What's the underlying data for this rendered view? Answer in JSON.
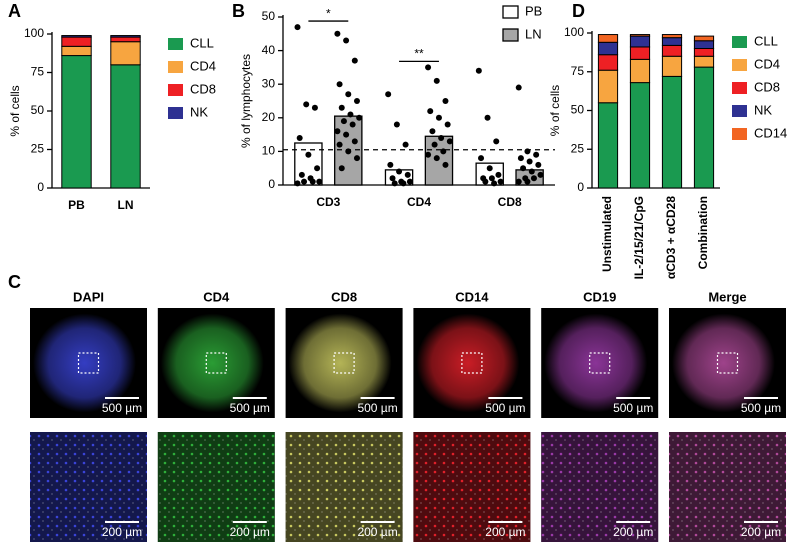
{
  "chart_data": [
    {
      "type": "stacked_bar",
      "panel": "A",
      "ylabel": "% of cells",
      "categories": [
        "PB",
        "LN"
      ],
      "series": [
        {
          "name": "CLL",
          "color": "#1a9a50",
          "values": [
            86,
            80
          ]
        },
        {
          "name": "CD4",
          "color": "#f7a540",
          "values": [
            6,
            15
          ]
        },
        {
          "name": "CD8",
          "color": "#ee2024",
          "values": [
            6,
            3
          ]
        },
        {
          "name": "NK",
          "color": "#2e3192",
          "values": [
            1,
            1
          ]
        }
      ],
      "ylim": [
        0,
        100
      ],
      "yticks": [
        0,
        25,
        50,
        75,
        100
      ],
      "legend": "right"
    },
    {
      "type": "bar",
      "panel": "B",
      "ylabel": "% of lymphocytes",
      "categories": [
        "CD3",
        "CD4",
        "CD8"
      ],
      "series": [
        {
          "name": "PB",
          "color": "#ffffff",
          "values": [
            12.5,
            4.5,
            6.5
          ],
          "points": [
            [
              47,
              24,
              23,
              14,
              9,
              5,
              3,
              2,
              1,
              1,
              1,
              0.5
            ],
            [
              27,
              18,
              12,
              6,
              4,
              3,
              2,
              1,
              1,
              0.5,
              0.5
            ],
            [
              34,
              20,
              13,
              8,
              5,
              3,
              2,
              2,
              1,
              1,
              0.5
            ]
          ]
        },
        {
          "name": "LN",
          "color": "#a6a6a6",
          "values": [
            20.5,
            14.5,
            4.5
          ],
          "points": [
            [
              45,
              43,
              37,
              30,
              27,
              25,
              23,
              21,
              20,
              19,
              18,
              16,
              15,
              13,
              12,
              10,
              8,
              5
            ],
            [
              35,
              31,
              25,
              22,
              20,
              18,
              16,
              14,
              13,
              12,
              10,
              9,
              8,
              6
            ],
            [
              29,
              10,
              9,
              8,
              7,
              6,
              5,
              4,
              3,
              2,
              2,
              1,
              1
            ]
          ]
        }
      ],
      "ylim": [
        0,
        50
      ],
      "yticks": [
        0,
        10,
        20,
        30,
        40,
        50
      ],
      "reference_line": 10.5,
      "annotations": [
        {
          "text": "*",
          "category": "CD3"
        },
        {
          "text": "**",
          "category": "CD4"
        }
      ],
      "legend": "top-right"
    },
    {
      "type": "stacked_bar",
      "panel": "D",
      "ylabel": "% of cells",
      "categories": [
        "Unstimulated",
        "IL-2/15/21/CpG",
        "αCD3 + αCD28",
        "Combination"
      ],
      "series": [
        {
          "name": "CLL",
          "color": "#1a9a50",
          "values": [
            55,
            68,
            72,
            78
          ]
        },
        {
          "name": "CD4",
          "color": "#f7a540",
          "values": [
            21,
            15,
            13,
            7
          ]
        },
        {
          "name": "CD8",
          "color": "#ee2024",
          "values": [
            10,
            8,
            7,
            5
          ]
        },
        {
          "name": "NK",
          "color": "#2e3192",
          "values": [
            8,
            7,
            5,
            5
          ]
        },
        {
          "name": "CD14",
          "color": "#f26522",
          "values": [
            5,
            1,
            2,
            3
          ]
        }
      ],
      "ylim": [
        0,
        100
      ],
      "yticks": [
        0,
        25,
        50,
        75,
        100
      ],
      "legend": "right"
    }
  ],
  "images": {
    "panel": "C",
    "channels": [
      {
        "name": "DAPI",
        "color": "#3a44d8"
      },
      {
        "name": "CD4",
        "color": "#2fae3a"
      },
      {
        "name": "CD8",
        "color": "#c8c860"
      },
      {
        "name": "CD14",
        "color": "#e0202a"
      },
      {
        "name": "CD19",
        "color": "#9a3aa8"
      },
      {
        "name": "Merge",
        "color": "#b04a9a"
      }
    ],
    "scale_bars": [
      "500 µm",
      "200 µm"
    ]
  }
}
